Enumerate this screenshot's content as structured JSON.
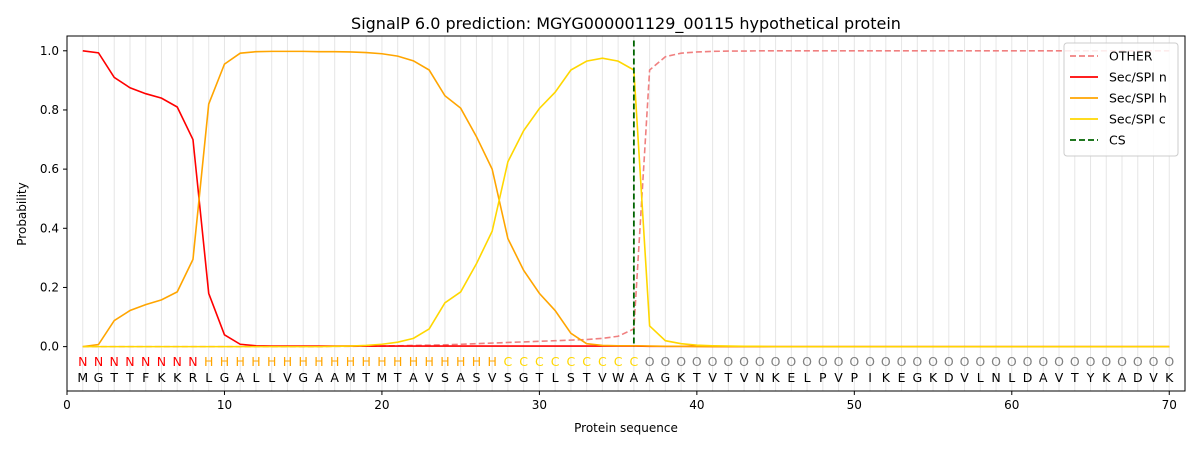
{
  "chart_data": {
    "type": "line",
    "title": "SignalP 6.0 prediction: MGYG000001129_00115 hypothetical protein",
    "xlabel": "Protein sequence",
    "ylabel": "Probability",
    "xlim": [
      0,
      71
    ],
    "ylim": [
      -0.15,
      1.05
    ],
    "xticks": [
      "0",
      "10",
      "20",
      "30",
      "40",
      "50",
      "60",
      "70"
    ],
    "yticks": [
      "0.0",
      "0.2",
      "0.4",
      "0.6",
      "0.8",
      "1.0"
    ],
    "grid": "vertical per residue",
    "legend_position": "top-right",
    "sequence": [
      "M",
      "G",
      "T",
      "T",
      "F",
      "K",
      "K",
      "R",
      "L",
      "G",
      "A",
      "L",
      "L",
      "V",
      "G",
      "A",
      "A",
      "M",
      "T",
      "M",
      "T",
      "A",
      "V",
      "S",
      "A",
      "S",
      "V",
      "S",
      "G",
      "T",
      "L",
      "S",
      "T",
      "V",
      "W",
      "A",
      "A",
      "G",
      "K",
      "T",
      "V",
      "T",
      "V",
      "N",
      "K",
      "E",
      "L",
      "P",
      "V",
      "P",
      "I",
      "K",
      "E",
      "G",
      "K",
      "D",
      "V",
      "L",
      "N",
      "L",
      "D",
      "A",
      "V",
      "T",
      "Y",
      "K",
      "A",
      "D",
      "V",
      "K"
    ],
    "labels": [
      "N",
      "N",
      "N",
      "N",
      "N",
      "N",
      "N",
      "N",
      "H",
      "H",
      "H",
      "H",
      "H",
      "H",
      "H",
      "H",
      "H",
      "H",
      "H",
      "H",
      "H",
      "H",
      "H",
      "H",
      "H",
      "H",
      "H",
      "C",
      "C",
      "C",
      "C",
      "C",
      "C",
      "C",
      "C",
      "C",
      "O",
      "O",
      "O",
      "O",
      "O",
      "O",
      "O",
      "O",
      "O",
      "O",
      "O",
      "O",
      "O",
      "O",
      "O",
      "O",
      "O",
      "O",
      "O",
      "O",
      "O",
      "O",
      "O",
      "O",
      "O",
      "O",
      "O",
      "O",
      "O",
      "O",
      "O",
      "O",
      "O",
      "O"
    ],
    "label_colors": {
      "N": "#ff0000",
      "H": "#ffa500",
      "C": "#ffd700",
      "O": "#808080"
    },
    "cs_position": 36,
    "series": [
      {
        "name": "OTHER",
        "color": "#f08080",
        "dash": true,
        "values": [
          0.0,
          0.0,
          0.0,
          0.0,
          0.0,
          0.0,
          0.0,
          0.0,
          0.0,
          0.0,
          0.0,
          0.0,
          0.0,
          0.0,
          0.0,
          0.0,
          0.001,
          0.001,
          0.002,
          0.002,
          0.003,
          0.004,
          0.005,
          0.006,
          0.008,
          0.01,
          0.012,
          0.014,
          0.016,
          0.018,
          0.02,
          0.022,
          0.024,
          0.028,
          0.035,
          0.06,
          0.935,
          0.98,
          0.992,
          0.996,
          0.998,
          0.999,
          0.999,
          1.0,
          1.0,
          1.0,
          1.0,
          1.0,
          1.0,
          1.0,
          1.0,
          1.0,
          1.0,
          1.0,
          1.0,
          1.0,
          1.0,
          1.0,
          1.0,
          1.0,
          1.0,
          1.0,
          1.0,
          1.0,
          1.0,
          1.0,
          1.0,
          1.0,
          1.0,
          1.0
        ]
      },
      {
        "name": "Sec/SPI n",
        "color": "#ff0000",
        "dash": false,
        "values": [
          1.0,
          0.993,
          0.91,
          0.875,
          0.855,
          0.84,
          0.81,
          0.7,
          0.18,
          0.04,
          0.008,
          0.003,
          0.002,
          0.002,
          0.002,
          0.002,
          0.002,
          0.002,
          0.002,
          0.002,
          0.002,
          0.002,
          0.002,
          0.002,
          0.002,
          0.002,
          0.002,
          0.002,
          0.002,
          0.002,
          0.002,
          0.002,
          0.002,
          0.002,
          0.002,
          0.002,
          0.001,
          0.001,
          0.001,
          0.001,
          0.0,
          0.0,
          0.0,
          0.0,
          0.0,
          0.0,
          0.0,
          0.0,
          0.0,
          0.0,
          0.0,
          0.0,
          0.0,
          0.0,
          0.0,
          0.0,
          0.0,
          0.0,
          0.0,
          0.0,
          0.0,
          0.0,
          0.0,
          0.0,
          0.0,
          0.0,
          0.0,
          0.0,
          0.0,
          0.0
        ]
      },
      {
        "name": "Sec/SPI h",
        "color": "#ffa500",
        "dash": false,
        "values": [
          0.0,
          0.007,
          0.088,
          0.122,
          0.142,
          0.158,
          0.185,
          0.295,
          0.82,
          0.955,
          0.992,
          0.997,
          0.998,
          0.998,
          0.998,
          0.997,
          0.997,
          0.996,
          0.994,
          0.99,
          0.982,
          0.966,
          0.935,
          0.848,
          0.806,
          0.71,
          0.6,
          0.365,
          0.258,
          0.18,
          0.122,
          0.045,
          0.01,
          0.004,
          0.003,
          0.003,
          0.002,
          0.001,
          0.001,
          0.0,
          0.0,
          0.0,
          0.0,
          0.0,
          0.0,
          0.0,
          0.0,
          0.0,
          0.0,
          0.0,
          0.0,
          0.0,
          0.0,
          0.0,
          0.0,
          0.0,
          0.0,
          0.0,
          0.0,
          0.0,
          0.0,
          0.0,
          0.0,
          0.0,
          0.0,
          0.0,
          0.0,
          0.0,
          0.0,
          0.0
        ]
      },
      {
        "name": "Sec/SPI c",
        "color": "#ffd700",
        "dash": false,
        "values": [
          0.0,
          0.0,
          0.0,
          0.0,
          0.0,
          0.0,
          0.0,
          0.0,
          0.0,
          0.0,
          0.0,
          0.0,
          0.0,
          0.0,
          0.0,
          0.0,
          0.001,
          0.002,
          0.004,
          0.008,
          0.015,
          0.028,
          0.06,
          0.148,
          0.185,
          0.28,
          0.39,
          0.625,
          0.73,
          0.805,
          0.86,
          0.935,
          0.965,
          0.975,
          0.965,
          0.935,
          0.07,
          0.02,
          0.01,
          0.005,
          0.003,
          0.002,
          0.001,
          0.001,
          0.0,
          0.0,
          0.0,
          0.0,
          0.0,
          0.0,
          0.0,
          0.0,
          0.0,
          0.0,
          0.0,
          0.0,
          0.0,
          0.0,
          0.0,
          0.0,
          0.0,
          0.0,
          0.0,
          0.0,
          0.0,
          0.0,
          0.0,
          0.0,
          0.0,
          0.0
        ]
      }
    ],
    "cs_series": {
      "name": "CS",
      "color": "#006400",
      "dash": true
    }
  }
}
